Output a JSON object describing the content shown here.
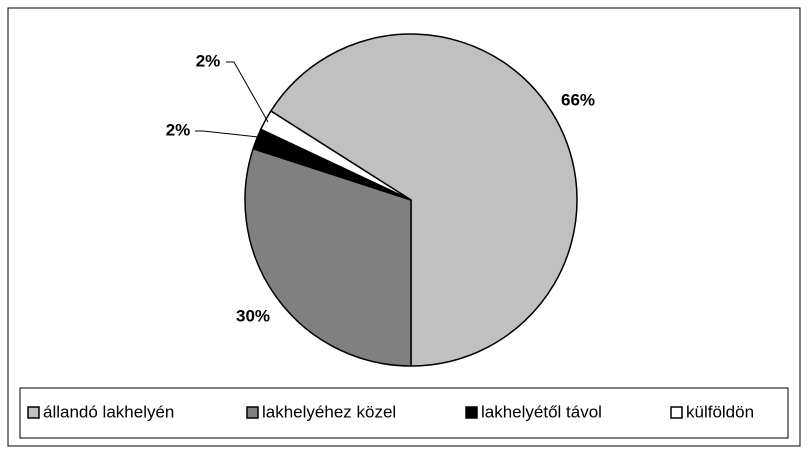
{
  "chart_data": {
    "type": "pie",
    "categories": [
      "állandó lakhelyén",
      "lakhelyéhez közel",
      "lakhelyétől távol",
      "külföldön"
    ],
    "values": [
      66,
      30,
      2,
      2
    ],
    "value_labels": [
      "66%",
      "30%",
      "2%",
      "2%"
    ],
    "colors": [
      "#c0c0c0",
      "#808080",
      "#000000",
      "#ffffff"
    ],
    "legend": "bottom"
  }
}
